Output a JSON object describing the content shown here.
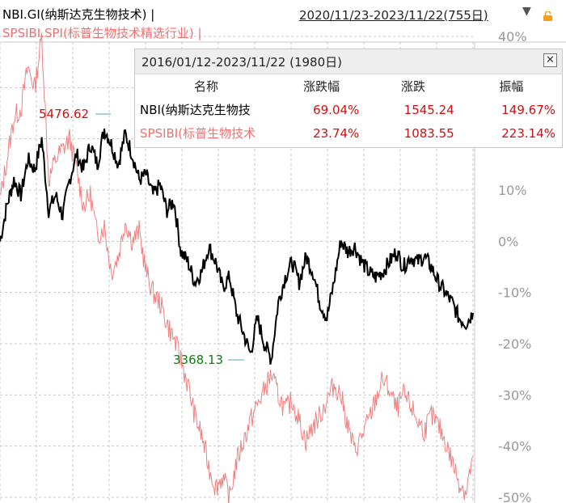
{
  "header": {
    "series1_title": "NBI.GI(纳斯达克生物技术) |",
    "series2_title": "SPSIBI.SPI(标普生物技术精选行业) |",
    "date_range": "2020/11/23-2023/11/22(755日)",
    "dropdown_icon": "triangle-down",
    "lock_icon": "lock"
  },
  "panel": {
    "title": "2016/01/12-2023/11/22 (1980日)",
    "close_label": "✕",
    "columns": [
      "名称",
      "涨跌幅",
      "涨跌",
      "振幅"
    ],
    "rows": [
      {
        "name": "NBI(纳斯达克生物技",
        "pct": "69.04%",
        "chg": "1545.24",
        "amp": "149.67%"
      },
      {
        "name": "SPSIBI(标普生物技术",
        "pct": "23.74%",
        "chg": "1083.55",
        "amp": "223.14%"
      }
    ]
  },
  "annotations": {
    "high": "5476.62",
    "low": "3368.13"
  },
  "colors": {
    "series1": "#000000",
    "series2": "#f08080",
    "positive": "#d01010",
    "high_label": "#d01010",
    "low_label": "#108010",
    "grid": "#c8c8c8"
  },
  "chart_data": {
    "type": "line",
    "x_range": [
      "2020/11/23",
      "2023/11/22"
    ],
    "y_axis_ticks": [
      "40%",
      "30%",
      "20%",
      "10%",
      "0%",
      "-10%",
      "-20%",
      "-30%",
      "-40%",
      "-50%"
    ],
    "ylim": [
      -50,
      40
    ],
    "grid": true,
    "series": [
      {
        "name": "NBI.GI(纳斯达克生物技术)",
        "values": [
          0,
          7,
          12,
          9,
          16,
          14,
          20,
          6,
          9,
          5,
          12,
          17,
          14,
          19,
          15,
          22,
          19,
          15,
          21,
          17,
          12,
          13,
          9,
          11,
          6,
          8,
          -2,
          -4,
          -8,
          -6,
          -1,
          -4,
          -9,
          -7,
          -14,
          -18,
          -22,
          -15,
          -20,
          -23,
          -12,
          -7,
          -4,
          -8,
          -3,
          -6,
          -12,
          -15,
          -8,
          0,
          -2,
          -1,
          -4,
          -6,
          -7,
          -6,
          -4,
          -2,
          -5,
          -3,
          -4,
          -3,
          -5,
          -8,
          -10,
          -12,
          -15,
          -16,
          -14
        ]
      },
      {
        "name": "SPSIBI.SPI(标普生物技术精选行业)",
        "values": [
          8,
          16,
          24,
          26,
          34,
          30,
          40,
          12,
          16,
          18,
          20,
          14,
          7,
          9,
          1,
          3,
          -6,
          -3,
          4,
          0,
          2,
          -6,
          -10,
          -12,
          -16,
          -19,
          -23,
          -28,
          -34,
          -38,
          -44,
          -48,
          -46,
          -50,
          -43,
          -39,
          -35,
          -32,
          -29,
          -26,
          -30,
          -33,
          -31,
          -35,
          -39,
          -36,
          -34,
          -31,
          -28,
          -30,
          -36,
          -41,
          -38,
          -35,
          -31,
          -27,
          -29,
          -33,
          -30,
          -32,
          -35,
          -37,
          -34,
          -36,
          -39,
          -43,
          -47,
          -49,
          -42
        ]
      }
    ]
  }
}
